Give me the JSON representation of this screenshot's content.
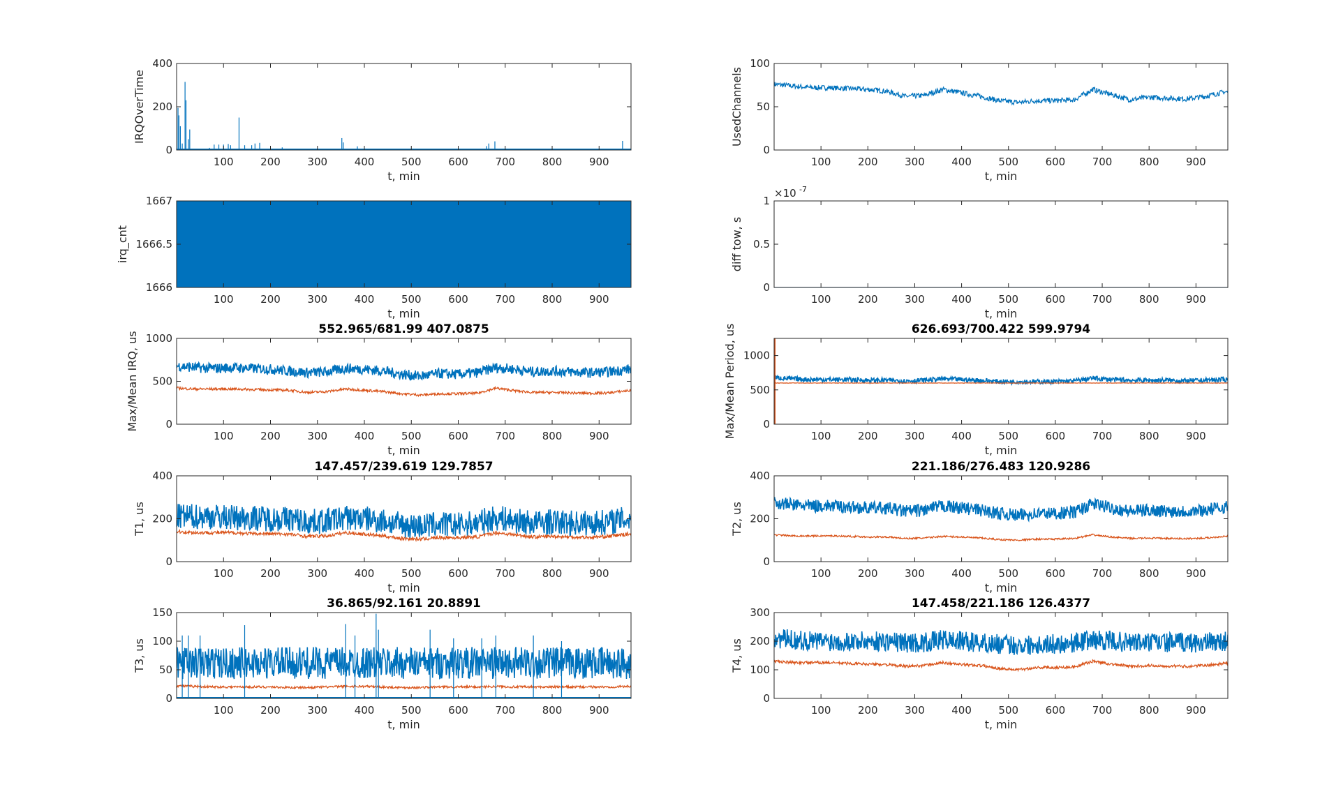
{
  "colors": {
    "blue": "#0072BD",
    "orange": "#D95319"
  },
  "chart_data": [
    {
      "type": "line",
      "title": "",
      "ylabel": "IRQOverTime",
      "xlabel": "t, min",
      "xlim": [
        0,
        968
      ],
      "ylim": [
        0,
        400
      ],
      "xticks": [
        "100",
        "200",
        "300",
        "400",
        "500",
        "600",
        "700",
        "800",
        "900"
      ],
      "yticks": [
        "0",
        "200",
        "400"
      ],
      "spikes": [
        {
          "color": "#0072BD",
          "points": [
            [
              3,
              195
            ],
            [
              5,
              160
            ],
            [
              8,
              110
            ],
            [
              12,
              30
            ],
            [
              18,
              315
            ],
            [
              20,
              230
            ],
            [
              25,
              50
            ],
            [
              28,
              95
            ],
            [
              70,
              10
            ],
            [
              80,
              25
            ],
            [
              90,
              25
            ],
            [
              100,
              25
            ],
            [
              110,
              28
            ],
            [
              115,
              22
            ],
            [
              133,
              150
            ],
            [
              145,
              22
            ],
            [
              160,
              22
            ],
            [
              167,
              30
            ],
            [
              177,
              33
            ],
            [
              225,
              12
            ],
            [
              352,
              55
            ],
            [
              355,
              35
            ],
            [
              385,
              17
            ],
            [
              660,
              18
            ],
            [
              665,
              30
            ],
            [
              678,
              40
            ],
            [
              950,
              42
            ]
          ]
        }
      ],
      "series": []
    },
    {
      "type": "line",
      "title": "",
      "ylabel": "UsedChannels",
      "xlabel": "t, min",
      "xlim": [
        0,
        968
      ],
      "ylim": [
        0,
        100
      ],
      "xticks": [
        "100",
        "200",
        "300",
        "400",
        "500",
        "600",
        "700",
        "800",
        "900"
      ],
      "yticks": [
        "0",
        "50",
        "100"
      ],
      "series": [
        {
          "color": "#0072BD",
          "t_step": 40,
          "spread": 3,
          "mean": [
            76,
            74,
            72,
            72,
            71,
            70,
            68,
            62,
            63,
            70,
            66,
            62,
            57,
            55,
            57,
            57,
            58,
            70,
            64,
            58,
            61,
            60,
            59,
            62,
            67
          ]
        }
      ]
    },
    {
      "type": "area",
      "title": "",
      "ylabel": "irq_cnt",
      "xlabel": "t, min",
      "xlim": [
        0,
        968
      ],
      "ylim": [
        1666,
        1667
      ],
      "xticks": [
        "100",
        "200",
        "300",
        "400",
        "500",
        "600",
        "700",
        "800",
        "900"
      ],
      "yticks": [
        "1666",
        "1666.5",
        "1667"
      ],
      "fill": {
        "color": "#0072BD",
        "range": [
          1666,
          1667
        ]
      },
      "series": []
    },
    {
      "type": "line",
      "title": "",
      "ylabel": "diff tow, s",
      "xlabel": "t, min",
      "xlim": [
        0,
        968
      ],
      "ylim": [
        0,
        1
      ],
      "exponent": "×10",
      "exponent_power": "-7",
      "xticks": [
        "100",
        "200",
        "300",
        "400",
        "500",
        "600",
        "700",
        "800",
        "900"
      ],
      "yticks": [
        "0",
        "0.5",
        "1"
      ],
      "series": [
        {
          "color": "#0072BD",
          "t_step": 40,
          "spread": 0,
          "mean": [
            0,
            0,
            0,
            0,
            0,
            0,
            0,
            0,
            0,
            0,
            0,
            0,
            0,
            0,
            0,
            0,
            0,
            0,
            0,
            0,
            0,
            0,
            0,
            0,
            0
          ]
        }
      ]
    },
    {
      "type": "line",
      "title": "552.965/681.99  407.0875",
      "ylabel": "Max/Mean IRQ, us",
      "xlabel": "t, min",
      "xlim": [
        0,
        968
      ],
      "ylim": [
        0,
        1000
      ],
      "xticks": [
        "100",
        "200",
        "300",
        "400",
        "500",
        "600",
        "700",
        "800",
        "900"
      ],
      "yticks": [
        "0",
        "500",
        "1000"
      ],
      "series": [
        {
          "color": "#0072BD",
          "t_step": 40,
          "spread": 60,
          "mean": [
            680,
            660,
            650,
            660,
            650,
            640,
            620,
            600,
            610,
            650,
            640,
            620,
            580,
            560,
            590,
            580,
            600,
            660,
            640,
            610,
            620,
            610,
            600,
            610,
            640
          ]
        },
        {
          "color": "#D95319",
          "t_step": 40,
          "spread": 15,
          "mean": [
            420,
            410,
            410,
            410,
            405,
            400,
            395,
            370,
            380,
            410,
            395,
            380,
            355,
            340,
            355,
            355,
            360,
            420,
            390,
            370,
            370,
            365,
            360,
            365,
            390
          ]
        }
      ]
    },
    {
      "type": "line",
      "title": "626.693/700.422  599.9794",
      "ylabel": "Max/Mean Period, us",
      "xlabel": "t, min",
      "xlim": [
        0,
        968
      ],
      "ylim": [
        0,
        1250
      ],
      "xticks": [
        "100",
        "200",
        "300",
        "400",
        "500",
        "600",
        "700",
        "800",
        "900"
      ],
      "yticks": [
        "0",
        "500",
        "1000"
      ],
      "start_spike": {
        "color": "#D95319",
        "value": 1250
      },
      "series": [
        {
          "color": "#0072BD",
          "t_step": 40,
          "spread": 35,
          "mean": [
            680,
            660,
            650,
            650,
            650,
            640,
            640,
            630,
            640,
            660,
            650,
            640,
            620,
            620,
            620,
            620,
            630,
            670,
            650,
            640,
            640,
            640,
            630,
            640,
            650
          ]
        },
        {
          "color": "#D95319",
          "t_step": 40,
          "spread": 3,
          "mean": [
            600,
            600,
            600,
            600,
            600,
            600,
            600,
            600,
            600,
            600,
            600,
            600,
            600,
            600,
            600,
            600,
            600,
            600,
            600,
            600,
            600,
            600,
            600,
            600,
            600
          ]
        }
      ]
    },
    {
      "type": "line",
      "title": "147.457/239.619  129.7857",
      "ylabel": "T1, us",
      "xlabel": "t, min",
      "xlim": [
        0,
        968
      ],
      "ylim": [
        0,
        400
      ],
      "xticks": [
        "100",
        "200",
        "300",
        "400",
        "500",
        "600",
        "700",
        "800",
        "900"
      ],
      "yticks": [
        "0",
        "200",
        "400"
      ],
      "series": [
        {
          "color": "#0072BD",
          "t_step": 40,
          "spread": 60,
          "mean": [
            210,
            210,
            210,
            205,
            205,
            200,
            200,
            185,
            190,
            205,
            200,
            190,
            170,
            165,
            175,
            170,
            180,
            205,
            190,
            180,
            185,
            180,
            180,
            185,
            200
          ]
        },
        {
          "color": "#D95319",
          "t_step": 40,
          "spread": 8,
          "mean": [
            140,
            135,
            135,
            135,
            130,
            130,
            128,
            118,
            120,
            135,
            128,
            120,
            108,
            105,
            112,
            112,
            115,
            135,
            125,
            115,
            118,
            115,
            113,
            118,
            128
          ]
        }
      ]
    },
    {
      "type": "line",
      "title": "221.186/276.483  120.9286",
      "ylabel": "T2, us",
      "xlabel": "t, min",
      "xlim": [
        0,
        968
      ],
      "ylim": [
        0,
        400
      ],
      "xticks": [
        "100",
        "200",
        "300",
        "400",
        "500",
        "600",
        "700",
        "800",
        "900"
      ],
      "yticks": [
        "0",
        "200",
        "400"
      ],
      "series": [
        {
          "color": "#0072BD",
          "t_step": 40,
          "spread": 30,
          "mean": [
            275,
            265,
            260,
            260,
            255,
            250,
            250,
            235,
            240,
            260,
            250,
            240,
            225,
            215,
            225,
            225,
            230,
            270,
            250,
            235,
            240,
            235,
            235,
            240,
            255
          ]
        },
        {
          "color": "#D95319",
          "t_step": 40,
          "spread": 4,
          "mean": [
            125,
            120,
            120,
            120,
            118,
            115,
            115,
            108,
            110,
            118,
            115,
            110,
            103,
            100,
            105,
            105,
            108,
            125,
            115,
            108,
            110,
            108,
            107,
            110,
            118
          ]
        }
      ]
    },
    {
      "type": "line",
      "title": "36.865/92.161  20.8891",
      "ylabel": "T3, us",
      "xlabel": "t, min",
      "xlim": [
        0,
        968
      ],
      "ylim": [
        0,
        150
      ],
      "xticks": [
        "100",
        "200",
        "300",
        "400",
        "500",
        "600",
        "700",
        "800",
        "900"
      ],
      "yticks": [
        "0",
        "50",
        "100",
        "150"
      ],
      "spikes": [
        {
          "color": "#0072BD",
          "points": [
            [
              12,
              110
            ],
            [
              25,
              110
            ],
            [
              50,
              110
            ],
            [
              145,
              128
            ],
            [
              360,
              130
            ],
            [
              380,
              110
            ],
            [
              425,
              148
            ],
            [
              430,
              120
            ],
            [
              540,
              120
            ],
            [
              590,
              105
            ],
            [
              650,
              105
            ],
            [
              680,
              110
            ],
            [
              760,
              110
            ],
            [
              820,
              100
            ]
          ]
        }
      ],
      "series": [
        {
          "color": "#0072BD",
          "t_step": 40,
          "spread": 28,
          "mean": [
            62,
            62,
            62,
            62,
            62,
            62,
            62,
            62,
            62,
            62,
            62,
            62,
            62,
            62,
            62,
            62,
            62,
            62,
            62,
            62,
            62,
            62,
            62,
            62,
            62
          ]
        },
        {
          "color": "#D95319",
          "t_step": 40,
          "spread": 2,
          "mean": [
            22,
            21,
            20,
            20,
            20,
            20,
            19,
            19,
            20,
            21,
            21,
            20,
            19,
            19,
            20,
            20,
            20,
            21,
            20,
            20,
            20,
            20,
            20,
            20,
            21
          ]
        }
      ]
    },
    {
      "type": "line",
      "title": "147.458/221.186  126.4377",
      "ylabel": "T4, us",
      "xlabel": "t, min",
      "xlim": [
        0,
        968
      ],
      "ylim": [
        0,
        300
      ],
      "xticks": [
        "100",
        "200",
        "300",
        "400",
        "500",
        "600",
        "700",
        "800",
        "900"
      ],
      "yticks": [
        "0",
        "100",
        "200",
        "300"
      ],
      "series": [
        {
          "color": "#0072BD",
          "t_step": 40,
          "spread": 35,
          "mean": [
            210,
            205,
            200,
            200,
            200,
            200,
            200,
            195,
            195,
            205,
            200,
            195,
            190,
            185,
            190,
            190,
            195,
            205,
            200,
            195,
            195,
            195,
            195,
            195,
            200
          ]
        },
        {
          "color": "#D95319",
          "t_step": 40,
          "spread": 5,
          "mean": [
            130,
            125,
            125,
            125,
            122,
            120,
            118,
            112,
            115,
            125,
            118,
            115,
            105,
            100,
            108,
            108,
            110,
            130,
            120,
            112,
            115,
            113,
            112,
            115,
            122
          ]
        }
      ]
    }
  ]
}
